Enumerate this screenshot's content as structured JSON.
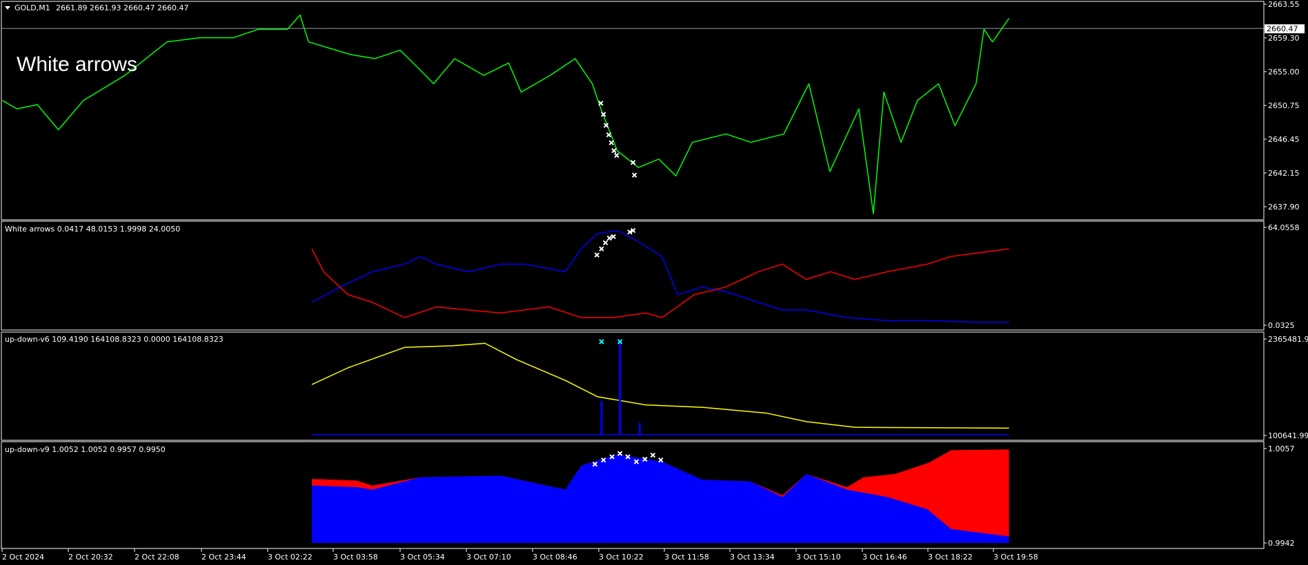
{
  "header": {
    "symbol": "GOLD,M1",
    "ohlc": "2661.89 2661.93 2660.47 2660.47",
    "overlay_label": "White arrows"
  },
  "colors": {
    "background": "#000000",
    "price": "#00ff00",
    "red": "#ff0000",
    "blue": "#0000ff",
    "yellow": "#ffff00",
    "white": "#ffffff",
    "cyan": "#00ffff",
    "grid_line": "#8c9aa8"
  },
  "time_axis": [
    "2 Oct 2024",
    "2 Oct 20:32",
    "2 Oct 22:08",
    "2 Oct 23:44",
    "3 Oct 02:22",
    "3 Oct 03:58",
    "3 Oct 05:34",
    "3 Oct 07:10",
    "3 Oct 08:46",
    "3 Oct 10:22",
    "3 Oct 11:58",
    "3 Oct 13:34",
    "3 Oct 15:10",
    "3 Oct 16:46",
    "3 Oct 18:22",
    "3 Oct 19:58"
  ],
  "chart_data": [
    {
      "type": "line",
      "title": "GOLD,M1",
      "ylim": [
        2637.9,
        2663.55
      ],
      "y_ticks": [
        "2663.55",
        "2659.30",
        "2655.00",
        "2650.75",
        "2646.45",
        "2642.15",
        "2637.90"
      ],
      "current_price": "2660.47",
      "series": [
        {
          "color": "#00ff00",
          "points": [
            [
              "2 Oct 18:52",
              2651.35
            ],
            [
              "2 Oct 19:14",
              2650.29
            ],
            [
              "2 Oct 19:45",
              2650.82
            ],
            [
              "2 Oct 20:17",
              2647.64
            ],
            [
              "2 Oct 20:55",
              2651.35
            ],
            [
              "2 Oct 21:58",
              2654.53
            ],
            [
              "2 Oct 23:02",
              2658.77
            ],
            [
              "2 Oct 23:52",
              2659.3
            ],
            [
              "3 Oct 00:43",
              2659.3
            ],
            [
              "3 Oct 01:21",
              2660.37
            ],
            [
              "3 Oct 02:05",
              2660.37
            ],
            [
              "3 Oct 02:24",
              2662.17
            ],
            [
              "3 Oct 02:37",
              2658.77
            ],
            [
              "3 Oct 03:40",
              2657.18
            ],
            [
              "3 Oct 04:18",
              2656.65
            ],
            [
              "3 Oct 04:56",
              2657.72
            ],
            [
              "3 Oct 05:22",
              2655.59
            ],
            [
              "3 Oct 05:47",
              2653.47
            ],
            [
              "3 Oct 06:19",
              2656.65
            ],
            [
              "3 Oct 07:03",
              2654.53
            ],
            [
              "3 Oct 07:41",
              2656.1
            ],
            [
              "3 Oct 08:00",
              2652.41
            ],
            [
              "3 Oct 08:44",
              2654.53
            ],
            [
              "3 Oct 09:22",
              2656.65
            ],
            [
              "3 Oct 09:48",
              2653.47
            ],
            [
              "3 Oct 10:01",
              2650.29
            ],
            [
              "3 Oct 10:26",
              2644.99
            ],
            [
              "3 Oct 10:58",
              2642.87
            ],
            [
              "3 Oct 11:29",
              2643.93
            ],
            [
              "3 Oct 11:55",
              2641.8
            ],
            [
              "3 Oct 12:20",
              2646.05
            ],
            [
              "3 Oct 13:11",
              2647.11
            ],
            [
              "3 Oct 13:49",
              2646.05
            ],
            [
              "3 Oct 14:39",
              2647.11
            ],
            [
              "3 Oct 15:17",
              2653.47
            ],
            [
              "3 Oct 15:49",
              2642.35
            ],
            [
              "3 Oct 16:33",
              2650.29
            ],
            [
              "3 Oct 16:55",
              2637.03
            ],
            [
              "3 Oct 17:11",
              2652.41
            ],
            [
              "3 Oct 17:37",
              2646.05
            ],
            [
              "3 Oct 18:02",
              2651.35
            ],
            [
              "3 Oct 18:34",
              2653.47
            ],
            [
              "3 Oct 18:59",
              2648.16
            ],
            [
              "3 Oct 19:31",
              2653.47
            ],
            [
              "3 Oct 19:43",
              2660.37
            ],
            [
              "3 Oct 19:56",
              2658.77
            ],
            [
              "3 Oct 20:21",
              2661.74
            ]
          ]
        }
      ],
      "markers": {
        "color": "#ffffff",
        "symbol": "x",
        "points": [
          [
            "3 Oct 10:01",
            2651.0
          ],
          [
            "3 Oct 10:05",
            2649.6
          ],
          [
            "3 Oct 10:09",
            2648.2
          ],
          [
            "3 Oct 10:13",
            2647.0
          ],
          [
            "3 Oct 10:17",
            2646.0
          ],
          [
            "3 Oct 10:21",
            2645.0
          ],
          [
            "3 Oct 10:25",
            2644.4
          ],
          [
            "3 Oct 10:50",
            2643.5
          ],
          [
            "3 Oct 10:52",
            2641.9
          ]
        ]
      }
    },
    {
      "type": "line",
      "title": "White arrows 0.0417 48.0153 1.9998 24.0050",
      "ylim": [
        0,
        64.0558
      ],
      "y_ticks": [
        "64.0558",
        "0.0325"
      ],
      "series": [
        {
          "color": "#0000ff",
          "points": [
            [
              "3 Oct 02:42",
              15
            ],
            [
              "3 Oct 03:25",
              25
            ],
            [
              "3 Oct 04:14",
              35
            ],
            [
              "3 Oct 05:03",
              40
            ],
            [
              "3 Oct 05:27",
              45
            ],
            [
              "3 Oct 05:51",
              40
            ],
            [
              "3 Oct 06:40",
              35
            ],
            [
              "3 Oct 07:29",
              40
            ],
            [
              "3 Oct 08:05",
              40
            ],
            [
              "3 Oct 09:07",
              35
            ],
            [
              "3 Oct 09:31",
              50
            ],
            [
              "3 Oct 09:56",
              60
            ],
            [
              "3 Oct 10:26",
              62
            ],
            [
              "3 Oct 10:57",
              55
            ],
            [
              "3 Oct 11:34",
              45
            ],
            [
              "3 Oct 11:58",
              20
            ],
            [
              "3 Oct 12:35",
              25
            ],
            [
              "3 Oct 13:11",
              22
            ],
            [
              "3 Oct 14:00",
              15
            ],
            [
              "3 Oct 14:37",
              10
            ],
            [
              "3 Oct 15:13",
              10
            ],
            [
              "3 Oct 16:15",
              5
            ],
            [
              "3 Oct 17:16",
              3
            ],
            [
              "3 Oct 18:17",
              3
            ],
            [
              "3 Oct 19:31",
              2
            ],
            [
              "3 Oct 20:21",
              2
            ]
          ]
        },
        {
          "color": "#ff0000",
          "points": [
            [
              "3 Oct 02:42",
              50
            ],
            [
              "3 Oct 03:00",
              35
            ],
            [
              "3 Oct 03:37",
              20
            ],
            [
              "3 Oct 04:14",
              15
            ],
            [
              "3 Oct 05:03",
              5
            ],
            [
              "3 Oct 05:51",
              12
            ],
            [
              "3 Oct 06:40",
              10
            ],
            [
              "3 Oct 07:29",
              8
            ],
            [
              "3 Oct 08:42",
              12
            ],
            [
              "3 Oct 09:31",
              5
            ],
            [
              "3 Oct 10:20",
              5
            ],
            [
              "3 Oct 11:09",
              8
            ],
            [
              "3 Oct 11:34",
              5
            ],
            [
              "3 Oct 12:23",
              20
            ],
            [
              "3 Oct 13:11",
              25
            ],
            [
              "3 Oct 14:00",
              35
            ],
            [
              "3 Oct 14:37",
              40
            ],
            [
              "3 Oct 15:13",
              30
            ],
            [
              "3 Oct 15:50",
              35
            ],
            [
              "3 Oct 16:27",
              30
            ],
            [
              "3 Oct 17:16",
              35
            ],
            [
              "3 Oct 18:17",
              40
            ],
            [
              "3 Oct 18:53",
              45
            ],
            [
              "3 Oct 20:21",
              50
            ]
          ]
        }
      ],
      "markers": {
        "color": "#ffffff",
        "symbol": "x",
        "points": [
          [
            "3 Oct 09:55",
            46
          ],
          [
            "3 Oct 10:02",
            50
          ],
          [
            "3 Oct 10:08",
            54
          ],
          [
            "3 Oct 10:14",
            57
          ],
          [
            "3 Oct 10:20",
            58
          ],
          [
            "3 Oct 10:45",
            61
          ],
          [
            "3 Oct 10:50",
            62
          ]
        ]
      }
    },
    {
      "type": "line",
      "title": "up-down-v6 109.4190 164108.8323 0.0000 164108.8323",
      "ylim": [
        0,
        2365481.9
      ],
      "y_ticks": [
        "2365481.9",
        "100641.99"
      ],
      "series": [
        {
          "color": "#ffff00",
          "points": [
            [
              "3 Oct 02:42",
              1250000
            ],
            [
              "3 Oct 03:37",
              1660000
            ],
            [
              "3 Oct 05:03",
              2160000
            ],
            [
              "3 Oct 06:16",
              2200000
            ],
            [
              "3 Oct 07:05",
              2260000
            ],
            [
              "3 Oct 07:53",
              1860000
            ],
            [
              "3 Oct 09:07",
              1350000
            ],
            [
              "3 Oct 09:56",
              950000
            ],
            [
              "3 Oct 11:09",
              750000
            ],
            [
              "3 Oct 12:35",
              690000
            ],
            [
              "3 Oct 14:12",
              550000
            ],
            [
              "3 Oct 15:13",
              340000
            ],
            [
              "3 Oct 16:27",
              200000
            ],
            [
              "3 Oct 20:21",
              180000
            ]
          ]
        },
        {
          "color": "#0000ff",
          "points": [
            [
              "3 Oct 02:42",
              20000
            ],
            [
              "3 Oct 20:21",
              20000
            ]
          ]
        }
      ],
      "blue_spikes": [
        [
          "3 Oct 10:02",
          850000
        ],
        [
          "3 Oct 10:30",
          2260000
        ],
        [
          "3 Oct 11:00",
          300000
        ]
      ],
      "markers": {
        "color": "#00ffff",
        "symbol": "x",
        "points": [
          [
            "3 Oct 10:02",
            2300000
          ],
          [
            "3 Oct 10:30",
            2300000
          ]
        ]
      }
    },
    {
      "type": "area",
      "title": "up-down-v9 1.0052 1.0052 0.9957 0.9950",
      "ylim": [
        0.9942,
        1.0057
      ],
      "y_ticks": [
        "1.0057",
        "0.9942"
      ],
      "series": [
        {
          "color": "#ff0000",
          "points": [
            [
              "3 Oct 02:42",
              1.002
            ],
            [
              "3 Oct 03:50",
              1.0018
            ],
            [
              "3 Oct 04:14",
              1.0012
            ],
            [
              "3 Oct 05:27",
              1.0022
            ],
            [
              "3 Oct 07:29",
              1.0024
            ],
            [
              "3 Oct 09:07",
              1.0007
            ],
            [
              "3 Oct 09:31",
              1.0036
            ],
            [
              "3 Oct 10:26",
              1.005
            ],
            [
              "3 Oct 11:34",
              1.0041
            ],
            [
              "3 Oct 12:35",
              1.0019
            ],
            [
              "3 Oct 13:48",
              1.0017
            ],
            [
              "3 Oct 14:37",
              1.0
            ],
            [
              "3 Oct 15:13",
              1.0026
            ],
            [
              "3 Oct 16:15",
              1.001
            ],
            [
              "3 Oct 16:40",
              1.0022
            ],
            [
              "3 Oct 17:28",
              1.0026
            ],
            [
              "3 Oct 18:20",
              1.004
            ],
            [
              "3 Oct 18:53",
              1.0055
            ],
            [
              "3 Oct 20:21",
              1.0056
            ]
          ]
        },
        {
          "color": "#0000ff",
          "points": [
            [
              "3 Oct 02:42",
              1.0012
            ],
            [
              "3 Oct 03:50",
              1.001
            ],
            [
              "3 Oct 04:14",
              1.0007
            ],
            [
              "3 Oct 05:27",
              1.0022
            ],
            [
              "3 Oct 07:29",
              1.0024
            ],
            [
              "3 Oct 09:07",
              1.0007
            ],
            [
              "3 Oct 09:31",
              1.0036
            ],
            [
              "3 Oct 10:26",
              1.005
            ],
            [
              "3 Oct 11:34",
              1.0041
            ],
            [
              "3 Oct 12:35",
              1.0019
            ],
            [
              "3 Oct 13:48",
              1.0017
            ],
            [
              "3 Oct 14:37",
              0.9998
            ],
            [
              "3 Oct 15:13",
              1.0026
            ],
            [
              "3 Oct 16:15",
              1.0007
            ],
            [
              "3 Oct 17:16",
              0.9998
            ],
            [
              "3 Oct 18:17",
              0.9983
            ],
            [
              "3 Oct 18:53",
              0.9959
            ],
            [
              "3 Oct 20:21",
              0.995
            ]
          ]
        }
      ],
      "markers": {
        "color": "#ffffff",
        "symbol": "x",
        "points": [
          [
            "3 Oct 09:52",
            1.0038
          ],
          [
            "3 Oct 10:05",
            1.0043
          ],
          [
            "3 Oct 10:18",
            1.0047
          ],
          [
            "3 Oct 10:30",
            1.0051
          ],
          [
            "3 Oct 10:42",
            1.0047
          ],
          [
            "3 Oct 10:55",
            1.0041
          ],
          [
            "3 Oct 11:08",
            1.0044
          ],
          [
            "3 Oct 11:20",
            1.0049
          ],
          [
            "3 Oct 11:32",
            1.0043
          ]
        ]
      }
    }
  ]
}
